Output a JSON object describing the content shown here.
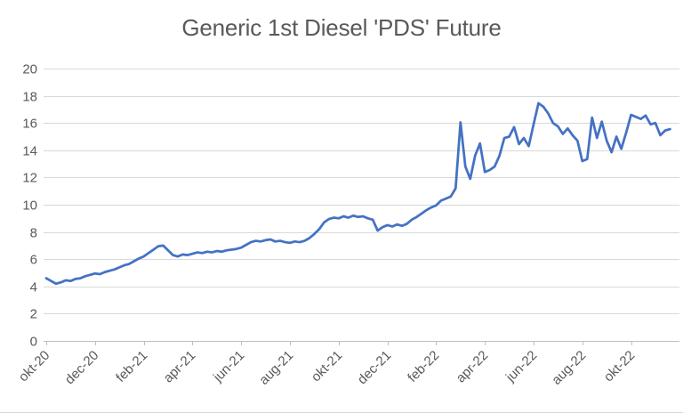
{
  "chart_data": {
    "type": "line",
    "title": "Generic 1st Diesel 'PDS' Future",
    "xlabel": "",
    "ylabel": "",
    "legend": "none",
    "grid": "horizontal",
    "ylim": [
      0,
      20
    ],
    "y_ticks": [
      0,
      2,
      4,
      6,
      8,
      10,
      12,
      14,
      16,
      18,
      20
    ],
    "x_tick_labels": [
      "okt-20",
      "dec-20",
      "feb-21",
      "apr-21",
      "jun-21",
      "aug-21",
      "okt-21",
      "dec-21",
      "feb-22",
      "apr-22",
      "jun-22",
      "aug-22",
      "okt-22"
    ],
    "x_points_per_tick_interval": 10,
    "series": [
      {
        "name": "Generic 1st Diesel 'PDS' Future",
        "values": [
          4.6,
          4.4,
          4.2,
          4.3,
          4.45,
          4.4,
          4.55,
          4.6,
          4.75,
          4.85,
          4.95,
          4.9,
          5.05,
          5.15,
          5.25,
          5.4,
          5.55,
          5.65,
          5.85,
          6.05,
          6.2,
          6.45,
          6.7,
          6.95,
          7.0,
          6.65,
          6.3,
          6.2,
          6.35,
          6.3,
          6.4,
          6.5,
          6.45,
          6.55,
          6.5,
          6.6,
          6.55,
          6.65,
          6.7,
          6.75,
          6.85,
          7.05,
          7.25,
          7.35,
          7.3,
          7.4,
          7.45,
          7.3,
          7.35,
          7.25,
          7.2,
          7.3,
          7.25,
          7.35,
          7.55,
          7.85,
          8.2,
          8.7,
          8.95,
          9.05,
          9.0,
          9.15,
          9.05,
          9.2,
          9.1,
          9.15,
          9.0,
          8.9,
          8.1,
          8.35,
          8.5,
          8.4,
          8.55,
          8.45,
          8.6,
          8.9,
          9.1,
          9.35,
          9.6,
          9.8,
          9.95,
          10.3,
          10.45,
          10.6,
          11.2,
          16.05,
          12.8,
          11.9,
          13.6,
          14.5,
          12.4,
          12.55,
          12.8,
          13.6,
          14.9,
          15.0,
          15.7,
          14.45,
          14.9,
          14.3,
          15.9,
          17.45,
          17.2,
          16.7,
          16.0,
          15.75,
          15.2,
          15.6,
          15.1,
          14.7,
          13.2,
          13.35,
          16.4,
          14.9,
          16.1,
          14.7,
          13.85,
          15.0,
          14.1,
          15.3,
          16.6,
          16.45,
          16.3,
          16.55,
          15.9,
          16.0,
          15.1,
          15.45,
          15.55
        ]
      }
    ],
    "colors": {
      "line": "#4472C4",
      "title_text": "#595959",
      "axis_text": "#595959",
      "gridline": "#D9D9D9",
      "axis_line": "#BFBFBF",
      "background": "#FFFFFF"
    }
  }
}
